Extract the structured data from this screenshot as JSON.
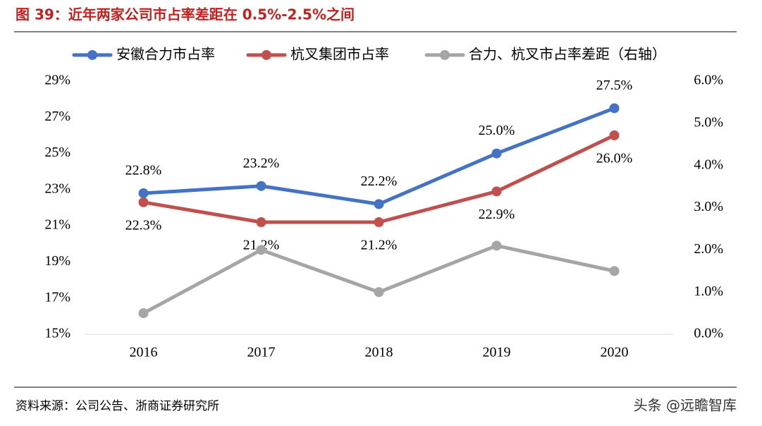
{
  "chart_data": {
    "type": "line",
    "title": "图 39：近年两家公司市占率差距在 0.5%-2.5%之间",
    "source": "资料来源：公司公告、浙商证券研究所",
    "watermark": "头条 @远瞻智库",
    "categories": [
      "2016",
      "2017",
      "2018",
      "2019",
      "2020"
    ],
    "series": [
      {
        "name": "安徽合力市占率",
        "color": "#4472c4",
        "values": [
          22.8,
          23.2,
          22.2,
          25.0,
          27.5
        ],
        "value_labels": [
          "22.8%",
          "23.2%",
          "22.2%",
          "25.0%",
          "27.5%"
        ],
        "label_position": "above"
      },
      {
        "name": "杭叉集团市占率",
        "color": "#c0504d",
        "values": [
          22.3,
          21.2,
          21.2,
          22.9,
          26.0
        ],
        "value_labels": [
          "22.3%",
          "21.2%",
          "21.2%",
          "22.9%",
          "26.0%"
        ],
        "label_position": "below"
      },
      {
        "name": "合力、杭叉市占率差距（右轴）",
        "color": "#a5a5a5",
        "axis": "y2",
        "values": [
          0.5,
          2.0,
          1.0,
          2.1,
          1.5
        ]
      }
    ],
    "ylim": [
      15,
      29
    ],
    "yticks": [
      {
        "value": 15,
        "label": "15%"
      },
      {
        "value": 17,
        "label": "17%"
      },
      {
        "value": 19,
        "label": "19%"
      },
      {
        "value": 21,
        "label": "21%"
      },
      {
        "value": 23,
        "label": "23%"
      },
      {
        "value": 25,
        "label": "25%"
      },
      {
        "value": 27,
        "label": "27%"
      },
      {
        "value": 29,
        "label": "29%"
      }
    ],
    "y2lim": [
      0,
      6
    ],
    "y2ticks": [
      {
        "value": 0,
        "label": "0.0%"
      },
      {
        "value": 1,
        "label": "1.0%"
      },
      {
        "value": 2,
        "label": "2.0%"
      },
      {
        "value": 3,
        "label": "3.0%"
      },
      {
        "value": 4,
        "label": "4.0%"
      },
      {
        "value": 5,
        "label": "5.0%"
      },
      {
        "value": 6,
        "label": "6.0%"
      }
    ],
    "grid": false,
    "legend": "top"
  }
}
